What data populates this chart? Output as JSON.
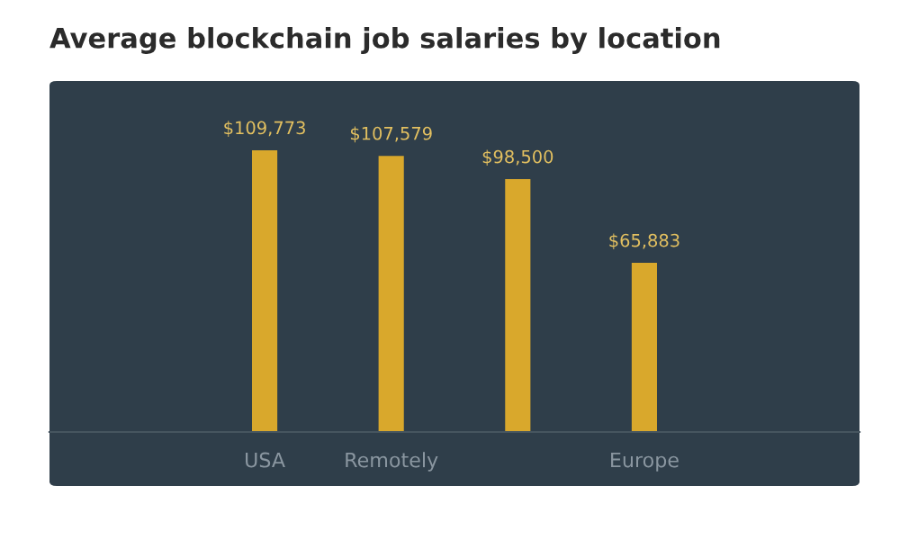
{
  "chart_data": {
    "type": "bar",
    "title": "Average blockchain job salaries by location",
    "categories": [
      "USA",
      "Remotely",
      null,
      "Europe"
    ],
    "values": [
      109773,
      107579,
      98500,
      65883
    ],
    "value_labels": [
      "$109,773",
      "$107,579",
      "$98,500",
      "$65,883"
    ],
    "color": "#d9a82c",
    "tick_labels": "x",
    "grid": false,
    "legend": false
  }
}
